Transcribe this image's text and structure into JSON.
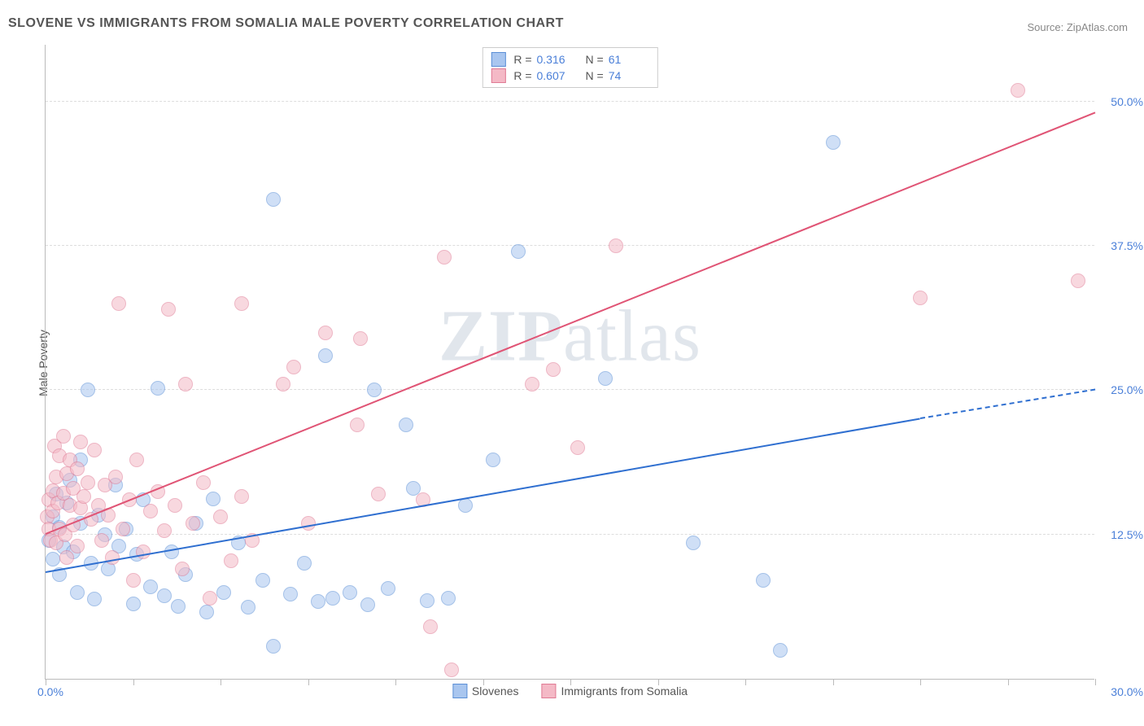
{
  "title": "SLOVENE VS IMMIGRANTS FROM SOMALIA MALE POVERTY CORRELATION CHART",
  "source": "Source: ZipAtlas.com",
  "ylabel": "Male Poverty",
  "watermark_bold": "ZIP",
  "watermark_light": "atlas",
  "chart": {
    "type": "scatter",
    "background_color": "#ffffff",
    "grid_color": "#dddddd",
    "axis_color": "#bbbbbb",
    "text_color": "#555555",
    "value_color": "#4a7fd8",
    "xlim": [
      0,
      30
    ],
    "ylim": [
      0,
      55
    ],
    "x_ticks": [
      0,
      2.5,
      5,
      7.5,
      10,
      12.5,
      15,
      17.5,
      20,
      22.5,
      25,
      27.5,
      30
    ],
    "y_gridlines": [
      12.5,
      25.0,
      37.5,
      50.0
    ],
    "x_origin_label": "0.0%",
    "x_max_label": "30.0%",
    "y_tick_labels": [
      "12.5%",
      "25.0%",
      "37.5%",
      "50.0%"
    ],
    "marker_radius": 9,
    "marker_opacity": 0.55,
    "series": [
      {
        "name": "Slovenes",
        "color_fill": "#a9c6ef",
        "color_stroke": "#5b8fd6",
        "R": "0.316",
        "N": "61",
        "trend": {
          "x1": 0,
          "y1": 9.2,
          "x2": 25,
          "y2": 22.5,
          "dashed_after_x": 25,
          "x_end": 30,
          "y_end": 25.0,
          "color": "#2f6fd0",
          "width": 2
        },
        "points": [
          [
            0.1,
            12.0
          ],
          [
            0.2,
            14.0
          ],
          [
            0.2,
            10.4
          ],
          [
            0.3,
            16.0
          ],
          [
            0.4,
            13.1
          ],
          [
            0.4,
            9.0
          ],
          [
            0.5,
            11.4
          ],
          [
            0.6,
            15.2
          ],
          [
            0.7,
            17.2
          ],
          [
            0.8,
            11.0
          ],
          [
            0.9,
            7.5
          ],
          [
            1.0,
            13.5
          ],
          [
            1.0,
            19.0
          ],
          [
            1.2,
            25.0
          ],
          [
            1.3,
            10.0
          ],
          [
            1.4,
            6.9
          ],
          [
            1.5,
            14.2
          ],
          [
            1.7,
            12.5
          ],
          [
            1.8,
            9.5
          ],
          [
            2.0,
            16.8
          ],
          [
            2.1,
            11.5
          ],
          [
            2.3,
            13.0
          ],
          [
            2.5,
            6.5
          ],
          [
            2.6,
            10.8
          ],
          [
            2.8,
            15.5
          ],
          [
            3.0,
            8.0
          ],
          [
            3.2,
            25.2
          ],
          [
            3.4,
            7.2
          ],
          [
            3.6,
            11.0
          ],
          [
            3.8,
            6.3
          ],
          [
            4.0,
            9.0
          ],
          [
            4.3,
            13.5
          ],
          [
            4.6,
            5.8
          ],
          [
            4.8,
            15.6
          ],
          [
            5.1,
            7.5
          ],
          [
            5.5,
            11.8
          ],
          [
            5.8,
            6.2
          ],
          [
            6.2,
            8.5
          ],
          [
            6.5,
            2.8
          ],
          [
            6.5,
            41.5
          ],
          [
            7.0,
            7.3
          ],
          [
            7.4,
            10.0
          ],
          [
            7.8,
            6.7
          ],
          [
            8.0,
            28.0
          ],
          [
            8.2,
            7.0
          ],
          [
            8.7,
            7.5
          ],
          [
            9.2,
            6.4
          ],
          [
            9.4,
            25.0
          ],
          [
            9.8,
            7.8
          ],
          [
            10.3,
            22.0
          ],
          [
            10.5,
            16.5
          ],
          [
            10.9,
            6.8
          ],
          [
            11.5,
            7.0
          ],
          [
            12.0,
            15.0
          ],
          [
            12.8,
            19.0
          ],
          [
            13.5,
            37.0
          ],
          [
            16.0,
            26.0
          ],
          [
            18.5,
            11.8
          ],
          [
            20.5,
            8.5
          ],
          [
            21.0,
            2.5
          ],
          [
            22.5,
            46.5
          ]
        ]
      },
      {
        "name": "Immigrants from Somalia",
        "color_fill": "#f4b9c6",
        "color_stroke": "#e07a94",
        "R": "0.607",
        "N": "74",
        "trend": {
          "x1": 0,
          "y1": 12.5,
          "x2": 30,
          "y2": 49.0,
          "color": "#e05475",
          "width": 2
        },
        "points": [
          [
            0.05,
            14.0
          ],
          [
            0.1,
            13.0
          ],
          [
            0.1,
            15.5
          ],
          [
            0.15,
            12.0
          ],
          [
            0.2,
            14.5
          ],
          [
            0.2,
            16.3
          ],
          [
            0.25,
            20.2
          ],
          [
            0.3,
            17.5
          ],
          [
            0.3,
            11.8
          ],
          [
            0.35,
            15.2
          ],
          [
            0.4,
            19.3
          ],
          [
            0.4,
            13.0
          ],
          [
            0.5,
            16.1
          ],
          [
            0.5,
            21.0
          ],
          [
            0.55,
            12.5
          ],
          [
            0.6,
            17.8
          ],
          [
            0.6,
            10.5
          ],
          [
            0.7,
            15.0
          ],
          [
            0.7,
            19.0
          ],
          [
            0.8,
            13.3
          ],
          [
            0.8,
            16.5
          ],
          [
            0.9,
            18.2
          ],
          [
            0.9,
            11.5
          ],
          [
            1.0,
            14.8
          ],
          [
            1.0,
            20.5
          ],
          [
            1.1,
            15.8
          ],
          [
            1.2,
            17.0
          ],
          [
            1.3,
            13.8
          ],
          [
            1.4,
            19.8
          ],
          [
            1.5,
            15.0
          ],
          [
            1.6,
            12.0
          ],
          [
            1.7,
            16.8
          ],
          [
            1.8,
            14.2
          ],
          [
            1.9,
            10.5
          ],
          [
            2.0,
            17.5
          ],
          [
            2.1,
            32.5
          ],
          [
            2.2,
            13.0
          ],
          [
            2.4,
            15.5
          ],
          [
            2.5,
            8.5
          ],
          [
            2.6,
            19.0
          ],
          [
            2.8,
            11.0
          ],
          [
            3.0,
            14.5
          ],
          [
            3.2,
            16.2
          ],
          [
            3.4,
            12.8
          ],
          [
            3.5,
            32.0
          ],
          [
            3.7,
            15.0
          ],
          [
            3.9,
            9.5
          ],
          [
            4.0,
            25.5
          ],
          [
            4.2,
            13.5
          ],
          [
            4.5,
            17.0
          ],
          [
            4.7,
            7.0
          ],
          [
            5.0,
            14.0
          ],
          [
            5.3,
            10.2
          ],
          [
            5.6,
            15.8
          ],
          [
            5.6,
            32.5
          ],
          [
            5.9,
            12.0
          ],
          [
            6.8,
            25.5
          ],
          [
            7.1,
            27.0
          ],
          [
            7.5,
            13.5
          ],
          [
            8.0,
            30.0
          ],
          [
            8.9,
            22.0
          ],
          [
            9.0,
            29.5
          ],
          [
            9.5,
            16.0
          ],
          [
            10.8,
            15.5
          ],
          [
            11.0,
            4.5
          ],
          [
            11.4,
            36.5
          ],
          [
            11.6,
            0.8
          ],
          [
            13.9,
            25.5
          ],
          [
            14.5,
            26.8
          ],
          [
            15.2,
            20.0
          ],
          [
            16.3,
            37.5
          ],
          [
            25.0,
            33.0
          ],
          [
            27.8,
            51.0
          ],
          [
            29.5,
            34.5
          ]
        ]
      }
    ]
  }
}
